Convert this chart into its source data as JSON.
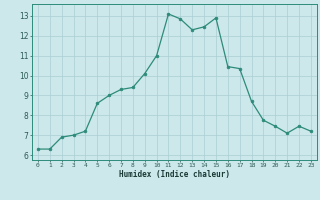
{
  "x": [
    0,
    1,
    2,
    3,
    4,
    5,
    6,
    7,
    8,
    9,
    10,
    11,
    12,
    13,
    14,
    15,
    16,
    17,
    18,
    19,
    20,
    21,
    22,
    23
  ],
  "y": [
    6.3,
    6.3,
    6.9,
    7.0,
    7.2,
    8.6,
    9.0,
    9.3,
    9.4,
    10.1,
    11.0,
    13.1,
    12.85,
    12.3,
    12.45,
    12.9,
    10.45,
    10.35,
    8.7,
    7.75,
    7.45,
    7.1,
    7.45,
    7.2
  ],
  "xlabel": "Humidex (Indice chaleur)",
  "xlim": [
    -0.5,
    23.5
  ],
  "ylim": [
    5.75,
    13.6
  ],
  "yticks": [
    6,
    7,
    8,
    9,
    10,
    11,
    12,
    13
  ],
  "xticks": [
    0,
    1,
    2,
    3,
    4,
    5,
    6,
    7,
    8,
    9,
    10,
    11,
    12,
    13,
    14,
    15,
    16,
    17,
    18,
    19,
    20,
    21,
    22,
    23
  ],
  "line_color": "#2d8b7a",
  "bg_color": "#cce8ea",
  "grid_color": "#aacfd4",
  "tick_label_color": "#2d5a55",
  "xlabel_color": "#1a3a35",
  "axes_edge_color": "#2d8b7a"
}
